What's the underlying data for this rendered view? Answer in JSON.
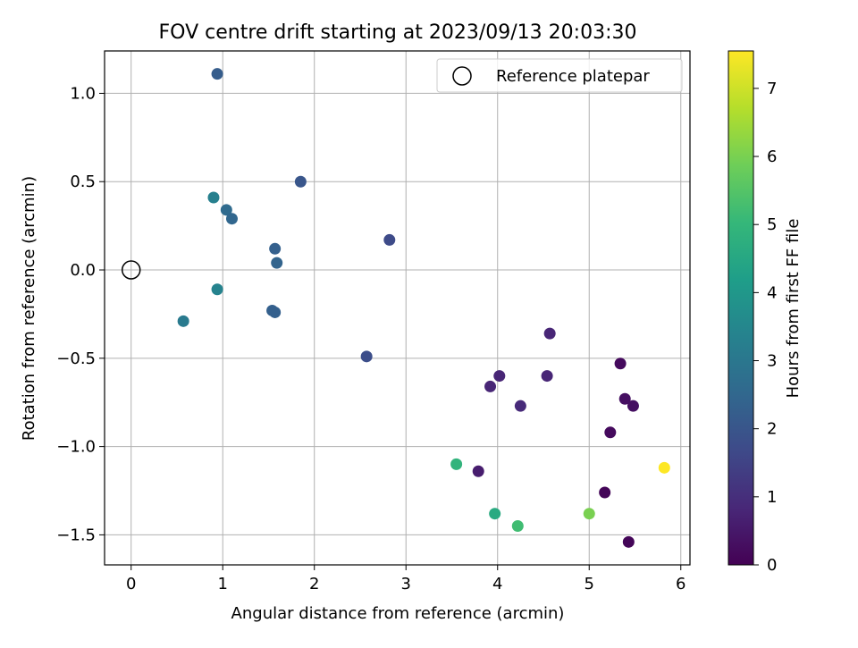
{
  "chart_data": {
    "type": "scatter",
    "title": "FOV centre drift starting at 2023/09/13 20:03:30",
    "xlabel": "Angular distance from reference (arcmin)",
    "ylabel": "Rotation from reference (arcmin)",
    "xlim": [
      -0.29,
      6.1
    ],
    "ylim": [
      -1.67,
      1.24
    ],
    "xticks": [
      0,
      1,
      2,
      3,
      4,
      5,
      6
    ],
    "xtick_labels": [
      "0",
      "1",
      "2",
      "3",
      "4",
      "5",
      "6"
    ],
    "yticks": [
      1.0,
      0.5,
      0.0,
      -0.5,
      -1.0,
      -1.5
    ],
    "ytick_labels": [
      "1.0",
      "0.5",
      "0.0",
      "−0.5",
      "−1.0",
      "−1.5"
    ],
    "grid": true,
    "legend": {
      "position": "upper right",
      "entries": [
        {
          "label": "Reference platepar",
          "marker": "open-circle",
          "x": 0,
          "y": 0
        }
      ]
    },
    "colorbar": {
      "label": "Hours from first FF file",
      "colormap": "viridis",
      "range": [
        0,
        7.55
      ],
      "ticks": [
        0,
        1,
        2,
        3,
        4,
        5,
        6,
        7
      ],
      "tick_labels": [
        "0",
        "1",
        "2",
        "3",
        "4",
        "5",
        "6",
        "7"
      ]
    },
    "colormap_stops": [
      "#440154",
      "#482878",
      "#3e4a89",
      "#31688e",
      "#26828e",
      "#1f9e89",
      "#35b779",
      "#6ece58",
      "#b5de2b",
      "#fde725"
    ],
    "points": [
      {
        "x": 0.94,
        "y": 1.11,
        "hours": 2.2
      },
      {
        "x": 1.85,
        "y": 0.5,
        "hours": 2.0
      },
      {
        "x": 0.9,
        "y": 0.41,
        "hours": 3.3
      },
      {
        "x": 1.04,
        "y": 0.34,
        "hours": 2.6
      },
      {
        "x": 1.1,
        "y": 0.29,
        "hours": 2.5
      },
      {
        "x": 1.57,
        "y": 0.12,
        "hours": 2.3
      },
      {
        "x": 2.82,
        "y": 0.17,
        "hours": 1.7
      },
      {
        "x": 1.59,
        "y": 0.04,
        "hours": 2.4
      },
      {
        "x": 0.94,
        "y": -0.11,
        "hours": 3.4
      },
      {
        "x": 0.57,
        "y": -0.29,
        "hours": 3.1
      },
      {
        "x": 1.54,
        "y": -0.23,
        "hours": 2.3
      },
      {
        "x": 1.57,
        "y": -0.24,
        "hours": 2.3
      },
      {
        "x": 2.57,
        "y": -0.49,
        "hours": 1.8
      },
      {
        "x": 4.57,
        "y": -0.36,
        "hours": 0.8
      },
      {
        "x": 4.02,
        "y": -0.6,
        "hours": 0.8
      },
      {
        "x": 3.92,
        "y": -0.66,
        "hours": 0.8
      },
      {
        "x": 4.54,
        "y": -0.6,
        "hours": 0.8
      },
      {
        "x": 4.25,
        "y": -0.77,
        "hours": 0.9
      },
      {
        "x": 5.34,
        "y": -0.53,
        "hours": 0.2
      },
      {
        "x": 5.39,
        "y": -0.73,
        "hours": 0.3
      },
      {
        "x": 5.48,
        "y": -0.77,
        "hours": 0.3
      },
      {
        "x": 5.23,
        "y": -0.92,
        "hours": 0.2
      },
      {
        "x": 3.55,
        "y": -1.1,
        "hours": 4.9
      },
      {
        "x": 3.79,
        "y": -1.14,
        "hours": 0.6
      },
      {
        "x": 5.17,
        "y": -1.26,
        "hours": 0.1
      },
      {
        "x": 3.97,
        "y": -1.38,
        "hours": 4.6
      },
      {
        "x": 4.22,
        "y": -1.45,
        "hours": 5.2
      },
      {
        "x": 5.0,
        "y": -1.38,
        "hours": 6.0
      },
      {
        "x": 5.82,
        "y": -1.12,
        "hours": 7.55
      },
      {
        "x": 5.43,
        "y": -1.54,
        "hours": 0.1
      }
    ]
  }
}
